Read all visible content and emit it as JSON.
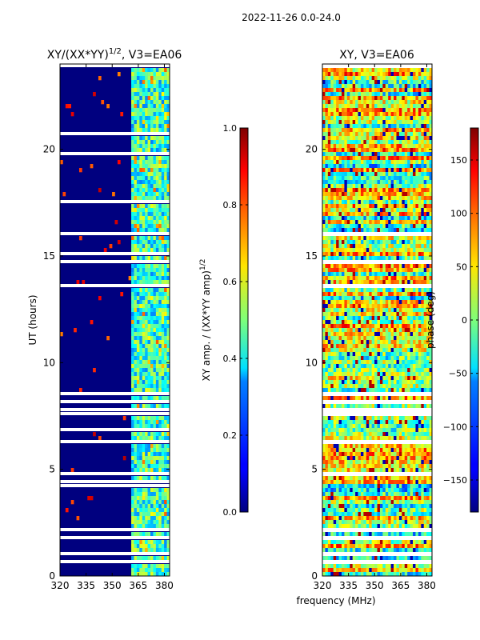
{
  "suptitle": "2022-11-26 0.0-24.0",
  "xlabel_shared": "frequency (MHz)",
  "chart_data": [
    {
      "type": "heatmap",
      "title_main": "XY/(XX*YY)",
      "title_sup": "1/2",
      "title_tail": ", V3=EA06",
      "ylabel": "UT (hours)",
      "xlim": [
        320,
        383
      ],
      "ylim": [
        0,
        24
      ],
      "xticks": [
        320,
        335,
        350,
        365,
        380
      ],
      "yticks": [
        0,
        5,
        10,
        15,
        20
      ],
      "colorbar": {
        "label_main": "XY amp. / (XX*YY amp)",
        "label_sup": "1/2",
        "range": [
          0.0,
          1.0
        ],
        "ticks": [
          "0.0",
          "0.2",
          "0.4",
          "0.6",
          "0.8",
          "1.0"
        ],
        "tick_values": [
          0.0,
          0.2,
          0.4,
          0.6,
          0.8,
          1.0
        ]
      }
    },
    {
      "type": "heatmap",
      "title": "XY, V3=EA06",
      "xlim": [
        320,
        383
      ],
      "ylim": [
        0,
        24
      ],
      "xticks": [
        320,
        335,
        350,
        365,
        380
      ],
      "yticks": [
        0,
        5,
        10,
        15,
        20
      ],
      "colorbar": {
        "label": "phase (deg)",
        "range": [
          -180,
          180
        ],
        "ticks": [
          "−150",
          "−100",
          "−50",
          "0",
          "50",
          "100",
          "150"
        ],
        "tick_values": [
          -150,
          -100,
          -50,
          0,
          50,
          100,
          150
        ]
      }
    }
  ]
}
